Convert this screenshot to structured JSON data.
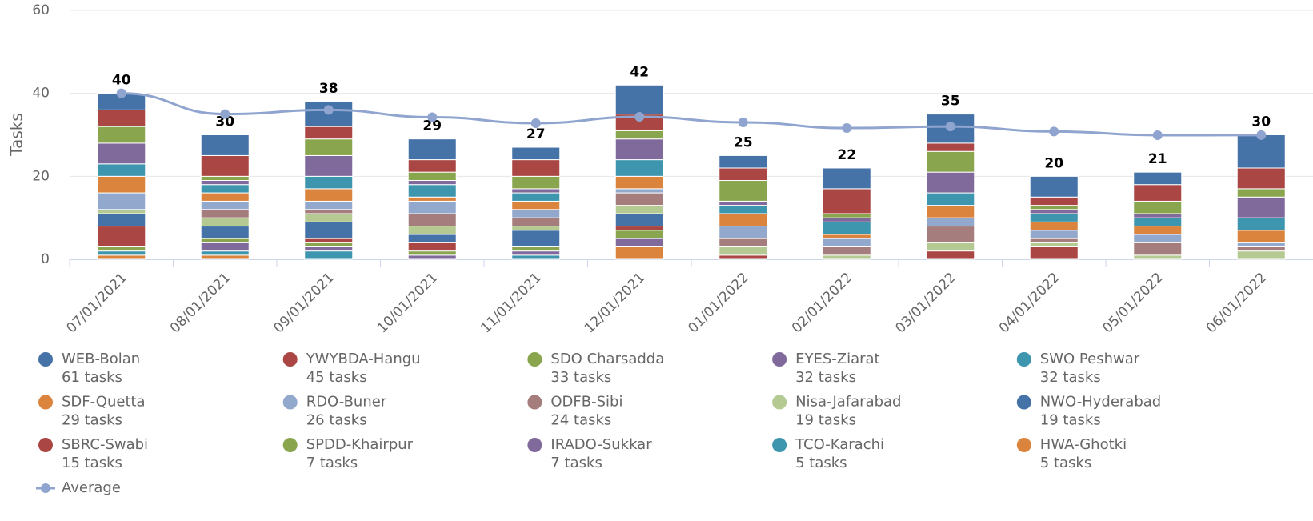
{
  "chart_data": {
    "type": "stacked-bar",
    "y_label": "Tasks",
    "categories": [
      "07/01/2021",
      "08/01/2021",
      "09/01/2021",
      "10/01/2021",
      "11/01/2021",
      "12/01/2021",
      "01/01/2022",
      "02/01/2022",
      "03/01/2022",
      "04/01/2022",
      "05/01/2022",
      "06/01/2022"
    ],
    "totals": [
      40,
      30,
      38,
      29,
      27,
      42,
      25,
      22,
      35,
      20,
      21,
      30
    ],
    "ylim": [
      0,
      60
    ],
    "yticks": [
      0,
      20,
      40,
      60
    ],
    "grid": true,
    "series": [
      {
        "name": "WEB-Bolan",
        "legend_label": "61 tasks",
        "color": "#4572a7",
        "values": [
          4,
          5,
          6,
          5,
          3,
          7,
          3,
          5,
          7,
          5,
          3,
          8
        ]
      },
      {
        "name": "YWYBDA-Hangu",
        "legend_label": "45 tasks",
        "color": "#aa4643",
        "values": [
          4,
          5,
          3,
          3,
          4,
          4,
          3,
          6,
          2,
          2,
          4,
          5
        ]
      },
      {
        "name": "SDO Charsadda",
        "legend_label": "33 tasks",
        "color": "#89a54e",
        "values": [
          4,
          1,
          4,
          2,
          3,
          2,
          5,
          1,
          5,
          1,
          3,
          2
        ]
      },
      {
        "name": "EYES-Ziarat",
        "legend_label": "32 tasks",
        "color": "#80699b",
        "values": [
          5,
          1,
          5,
          1,
          1,
          5,
          1,
          1,
          5,
          1,
          1,
          5
        ]
      },
      {
        "name": "SWO Peshwar",
        "legend_label": "32 tasks",
        "color": "#3d96ae",
        "values": [
          3,
          2,
          3,
          3,
          2,
          4,
          2,
          3,
          3,
          2,
          2,
          3
        ]
      },
      {
        "name": "SDF-Quetta",
        "legend_label": "29 tasks",
        "color": "#db843d",
        "values": [
          4,
          2,
          3,
          1,
          2,
          3,
          3,
          1,
          3,
          2,
          2,
          3
        ]
      },
      {
        "name": "RDO-Buner",
        "legend_label": "26 tasks",
        "color": "#92a8cd",
        "values": [
          4,
          2,
          2,
          3,
          2,
          1,
          3,
          2,
          2,
          2,
          2,
          1
        ]
      },
      {
        "name": "ODFB-Sibi",
        "legend_label": "24 tasks",
        "color": "#a47d7c",
        "values": [
          0,
          2,
          1,
          3,
          2,
          3,
          2,
          2,
          4,
          1,
          3,
          1
        ]
      },
      {
        "name": "Nisa-Jafarabad",
        "legend_label": "19 tasks",
        "color": "#b5ca92",
        "values": [
          1,
          2,
          2,
          2,
          1,
          2,
          2,
          1,
          2,
          1,
          1,
          2
        ]
      },
      {
        "name": "NWO-Hyderabad",
        "legend_label": "19 tasks",
        "color": "#4572a7",
        "values": [
          3,
          3,
          4,
          2,
          4,
          3,
          0,
          0,
          0,
          0,
          0,
          0
        ]
      },
      {
        "name": "SBRC-Swabi",
        "legend_label": "15 tasks",
        "color": "#aa4643",
        "values": [
          5,
          0,
          1,
          2,
          0,
          1,
          1,
          0,
          2,
          3,
          0,
          0
        ]
      },
      {
        "name": "SPDD-Khairpur",
        "legend_label": "7 tasks",
        "color": "#89a54e",
        "values": [
          1,
          1,
          1,
          1,
          1,
          2,
          0,
          0,
          0,
          0,
          0,
          0
        ]
      },
      {
        "name": "IRADO-Sukkar",
        "legend_label": "7 tasks",
        "color": "#80699b",
        "values": [
          0,
          2,
          1,
          1,
          1,
          2,
          0,
          0,
          0,
          0,
          0,
          0
        ]
      },
      {
        "name": "TCO-Karachi",
        "legend_label": "5 tasks",
        "color": "#3d96ae",
        "values": [
          1,
          1,
          2,
          0,
          1,
          0,
          0,
          0,
          0,
          0,
          0,
          0
        ]
      },
      {
        "name": "HWA-Ghotki",
        "legend_label": "5 tasks",
        "color": "#db843d",
        "values": [
          1,
          1,
          0,
          0,
          0,
          3,
          0,
          0,
          0,
          0,
          0,
          0
        ]
      }
    ],
    "average": {
      "name": "Average",
      "color": "#8fa5cf",
      "values": [
        40,
        35,
        36,
        34.25,
        32.8,
        34.33,
        33,
        31.63,
        32,
        30.8,
        29.91,
        29.92
      ]
    }
  }
}
